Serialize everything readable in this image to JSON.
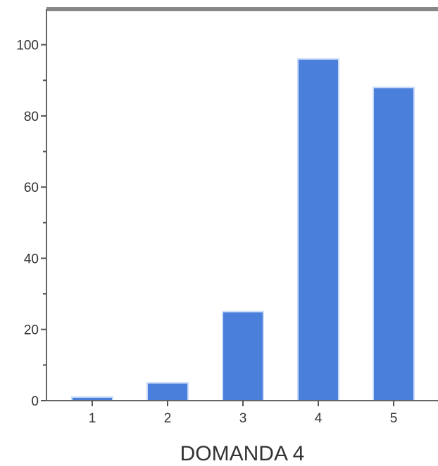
{
  "chart_data": {
    "type": "bar",
    "categories": [
      "1",
      "2",
      "3",
      "4",
      "5"
    ],
    "values": [
      1,
      5,
      25,
      96,
      88
    ],
    "title": "",
    "xlabel": "DOMANDA 4",
    "ylabel": "",
    "ylim": [
      0,
      110
    ],
    "yticks": [
      0,
      20,
      40,
      60,
      80,
      100
    ],
    "ytick_labels": [
      "0",
      "20",
      "40",
      "60",
      "80",
      "100"
    ],
    "grid": false,
    "bar_color": "#4a7fdb"
  }
}
